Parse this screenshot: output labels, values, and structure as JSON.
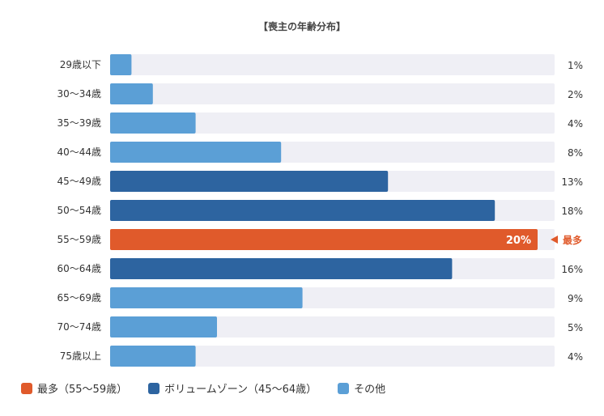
{
  "title": "【喪主の年齢分布】",
  "colors": {
    "max": "#e05a2b",
    "volume": "#2d64a0",
    "other": "#5b9fd6",
    "track": "#efeff5",
    "max_label": "#e05a2b"
  },
  "max_marker": {
    "label": "最多"
  },
  "legend": [
    {
      "label": "最多（55〜59歳）",
      "group": "max"
    },
    {
      "label": "ボリュームゾーン（45〜64歳）",
      "group": "volume"
    },
    {
      "label": "その他",
      "group": "other"
    }
  ],
  "chart_data": {
    "type": "bar",
    "orientation": "horizontal",
    "title": "【喪主の年齢分布】",
    "categories": [
      "29歳以下",
      "30〜34歳",
      "35〜39歳",
      "40〜44歳",
      "45〜49歳",
      "50〜54歳",
      "55〜59歳",
      "60〜64歳",
      "65〜69歳",
      "70〜74歳",
      "75歳以上"
    ],
    "values": [
      1,
      2,
      4,
      8,
      13,
      18,
      20,
      16,
      9,
      5,
      4
    ],
    "value_labels": [
      "1%",
      "2%",
      "4%",
      "8%",
      "13%",
      "18%",
      "20%",
      "16%",
      "9%",
      "5%",
      "4%"
    ],
    "groups": [
      "other",
      "other",
      "other",
      "other",
      "volume",
      "volume",
      "max",
      "volume",
      "other",
      "other",
      "other"
    ],
    "xlim": [
      0,
      20
    ],
    "unit": "%",
    "grid": false
  }
}
